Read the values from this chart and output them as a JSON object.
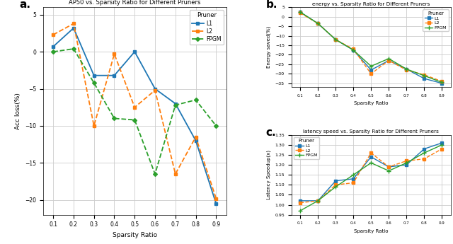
{
  "sparsity": [
    0.1,
    0.2,
    0.3,
    0.4,
    0.5,
    0.6,
    0.7,
    0.8,
    0.9
  ],
  "ap50_L1": [
    0.7,
    3.2,
    -3.2,
    -3.2,
    0.0,
    -5.0,
    -7.0,
    -12.0,
    -20.5
  ],
  "ap50_L2": [
    2.3,
    3.8,
    -10.0,
    -0.3,
    -7.5,
    -5.2,
    -16.5,
    -11.5,
    -19.8
  ],
  "ap50_FPGM": [
    0.0,
    0.4,
    -4.2,
    -9.0,
    -9.2,
    -16.5,
    -7.2,
    -6.5,
    -10.0
  ],
  "energy_L1": [
    2.5,
    -3.5,
    -12.0,
    -17.5,
    -28.0,
    -23.0,
    -27.5,
    -32.5,
    -35.0
  ],
  "energy_L2": [
    2.0,
    -3.5,
    -12.0,
    -17.0,
    -30.0,
    -23.0,
    -28.0,
    -30.5,
    -34.0
  ],
  "energy_FPGM": [
    2.5,
    -3.5,
    -12.0,
    -17.5,
    -26.0,
    -22.0,
    -27.5,
    -31.0,
    -34.5
  ],
  "latency_L1": [
    1.02,
    1.02,
    1.12,
    1.13,
    1.24,
    1.19,
    1.2,
    1.28,
    1.31
  ],
  "latency_L2": [
    1.01,
    1.02,
    1.1,
    1.11,
    1.26,
    1.19,
    1.22,
    1.23,
    1.28
  ],
  "latency_FPGM": [
    0.97,
    1.02,
    1.09,
    1.15,
    1.21,
    1.17,
    1.21,
    1.26,
    1.3
  ],
  "color_L1": "#1f77b4",
  "color_L2": "#ff7f0e",
  "color_FPGM": "#2ca02c",
  "title_a": "AP50 vs. Sparsity Ratio for Different Pruners",
  "title_b": "energy vs. Sparsity Ratio for Different Pruners",
  "title_c": "latency speed vs. Sparsity Ratio for Different Pruners",
  "ylabel_a": "Acc loss(%)",
  "ylabel_b": "Energy saved(%)",
  "ylabel_c": "Latency Speedup(x)",
  "xlabel": "Sparsity Ratio",
  "ylim_a": [
    -22,
    6
  ],
  "ylim_b": [
    -37,
    5
  ],
  "ylim_c": [
    0.95,
    1.35
  ],
  "label_a": "a.",
  "label_b": "b.",
  "label_c": "c.",
  "bg_color": "#ffffff"
}
